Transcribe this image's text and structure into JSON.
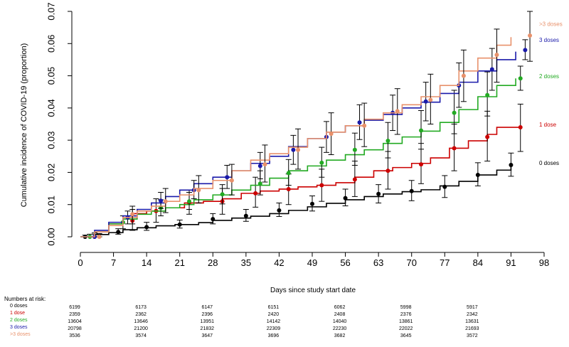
{
  "chart_data": {
    "type": "line",
    "xlabel": "Days since study start date",
    "ylabel": "Cumulative incidence of COVID-19 (proportion)",
    "xlim": [
      0,
      98
    ],
    "ylim": [
      0,
      0.07
    ],
    "x_ticks": [
      "0",
      "7",
      "14",
      "21",
      "28",
      "35",
      "42",
      "49",
      "56",
      "63",
      "70",
      "77",
      "84",
      "91",
      "98"
    ],
    "y_ticks": [
      "0.00",
      "0.01",
      "0.02",
      "0.03",
      "0.04",
      "0.05",
      "0.06",
      "0.07"
    ],
    "series": [
      {
        "name": "0 doses",
        "color": "#000000",
        "end_label": "0 doses",
        "curve": [
          [
            0,
            0
          ],
          [
            3,
            0.0007
          ],
          [
            6,
            0.0013
          ],
          [
            9,
            0.0022
          ],
          [
            12,
            0.0028
          ],
          [
            16,
            0.0034
          ],
          [
            20,
            0.0038
          ],
          [
            25,
            0.0044
          ],
          [
            28,
            0.0051
          ],
          [
            32,
            0.0058
          ],
          [
            36,
            0.0064
          ],
          [
            40,
            0.0072
          ],
          [
            44,
            0.0082
          ],
          [
            48,
            0.0093
          ],
          [
            52,
            0.0104
          ],
          [
            56,
            0.0115
          ],
          [
            60,
            0.0125
          ],
          [
            64,
            0.0133
          ],
          [
            68,
            0.014
          ],
          [
            72,
            0.0146
          ],
          [
            76,
            0.0158
          ],
          [
            80,
            0.0172
          ],
          [
            84,
            0.0192
          ],
          [
            88,
            0.0207
          ],
          [
            91,
            0.0225
          ]
        ],
        "points": [
          {
            "x": 1,
            "y": 0,
            "lo": 0,
            "hi": 0.0005
          },
          {
            "x": 8,
            "y": 0.0015,
            "lo": 0.0008,
            "hi": 0.0025
          },
          {
            "x": 14,
            "y": 0.003,
            "lo": 0.002,
            "hi": 0.0045
          },
          {
            "x": 21,
            "y": 0.0038,
            "lo": 0.0027,
            "hi": 0.0052
          },
          {
            "x": 28,
            "y": 0.0055,
            "lo": 0.004,
            "hi": 0.0072
          },
          {
            "x": 35,
            "y": 0.0065,
            "lo": 0.0048,
            "hi": 0.0085
          },
          {
            "x": 42,
            "y": 0.0082,
            "lo": 0.0063,
            "hi": 0.0105
          },
          {
            "x": 49,
            "y": 0.0102,
            "lo": 0.008,
            "hi": 0.0127
          },
          {
            "x": 56,
            "y": 0.012,
            "lo": 0.0096,
            "hi": 0.0148
          },
          {
            "x": 63,
            "y": 0.0133,
            "lo": 0.0105,
            "hi": 0.0162
          },
          {
            "x": 70,
            "y": 0.0142,
            "lo": 0.0112,
            "hi": 0.0175
          },
          {
            "x": 77,
            "y": 0.0155,
            "lo": 0.0122,
            "hi": 0.019
          },
          {
            "x": 84,
            "y": 0.0192,
            "lo": 0.0158,
            "hi": 0.023
          },
          {
            "x": 91,
            "y": 0.0223,
            "lo": 0.0188,
            "hi": 0.026
          }
        ]
      },
      {
        "name": "1 dose",
        "color": "#cc0000",
        "end_label": "1 dose",
        "curve": [
          [
            1,
            0
          ],
          [
            3,
            0.0015
          ],
          [
            6,
            0.004
          ],
          [
            9,
            0.006
          ],
          [
            11,
            0.0072
          ],
          [
            14,
            0.008
          ],
          [
            18,
            0.009
          ],
          [
            22,
            0.0105
          ],
          [
            26,
            0.011
          ],
          [
            30,
            0.0118
          ],
          [
            34,
            0.0135
          ],
          [
            38,
            0.0142
          ],
          [
            42,
            0.0148
          ],
          [
            46,
            0.0155
          ],
          [
            50,
            0.016
          ],
          [
            54,
            0.0168
          ],
          [
            58,
            0.0185
          ],
          [
            62,
            0.0205
          ],
          [
            66,
            0.0215
          ],
          [
            70,
            0.0228
          ],
          [
            74,
            0.0245
          ],
          [
            78,
            0.0275
          ],
          [
            82,
            0.0298
          ],
          [
            86,
            0.0318
          ],
          [
            88,
            0.034
          ],
          [
            93,
            0.0342
          ]
        ],
        "points": [
          {
            "x": 3,
            "y": 0,
            "lo": 0,
            "hi": 0.0012
          },
          {
            "x": 11,
            "y": 0.005,
            "lo": 0.002,
            "hi": 0.0085
          },
          {
            "x": 16,
            "y": 0.008,
            "lo": 0.0045,
            "hi": 0.0118
          },
          {
            "x": 23,
            "y": 0.0105,
            "lo": 0.007,
            "hi": 0.0145
          },
          {
            "x": 30,
            "y": 0.011,
            "lo": 0.007,
            "hi": 0.015
          },
          {
            "x": 37,
            "y": 0.0135,
            "lo": 0.0092,
            "hi": 0.0185
          },
          {
            "x": 44,
            "y": 0.0148,
            "lo": 0.01,
            "hi": 0.0195
          },
          {
            "x": 51,
            "y": 0.016,
            "lo": 0.011,
            "hi": 0.021
          },
          {
            "x": 58,
            "y": 0.0178,
            "lo": 0.0125,
            "hi": 0.0235
          },
          {
            "x": 65,
            "y": 0.0205,
            "lo": 0.0148,
            "hi": 0.0265
          },
          {
            "x": 72,
            "y": 0.0225,
            "lo": 0.0165,
            "hi": 0.029
          },
          {
            "x": 79,
            "y": 0.0275,
            "lo": 0.0205,
            "hi": 0.035
          },
          {
            "x": 86,
            "y": 0.031,
            "lo": 0.0235,
            "hi": 0.039
          },
          {
            "x": 93,
            "y": 0.034,
            "lo": 0.0265,
            "hi": 0.0412
          }
        ]
      },
      {
        "name": "2 doses",
        "color": "#22aa22",
        "end_label": "2 doses",
        "curve": [
          [
            0,
            0
          ],
          [
            3,
            0.0015
          ],
          [
            6,
            0.004
          ],
          [
            9,
            0.0055
          ],
          [
            12,
            0.007
          ],
          [
            15,
            0.008
          ],
          [
            18,
            0.009
          ],
          [
            21,
            0.01
          ],
          [
            24,
            0.0115
          ],
          [
            28,
            0.013
          ],
          [
            32,
            0.0145
          ],
          [
            36,
            0.016
          ],
          [
            40,
            0.0182
          ],
          [
            44,
            0.0205
          ],
          [
            48,
            0.022
          ],
          [
            52,
            0.0238
          ],
          [
            56,
            0.0255
          ],
          [
            60,
            0.027
          ],
          [
            64,
            0.029
          ],
          [
            68,
            0.031
          ],
          [
            72,
            0.0328
          ],
          [
            76,
            0.0355
          ],
          [
            80,
            0.0395
          ],
          [
            84,
            0.0435
          ],
          [
            88,
            0.047
          ],
          [
            92,
            0.0492
          ]
        ],
        "points": [
          {
            "x": 2,
            "y": 0,
            "lo": 0,
            "hi": 0.0008
          },
          {
            "x": 9,
            "y": 0.0045,
            "lo": 0.0025,
            "hi": 0.0065
          },
          {
            "x": 17,
            "y": 0.009,
            "lo": 0.0065,
            "hi": 0.0115
          },
          {
            "x": 23,
            "y": 0.011,
            "lo": 0.0085,
            "hi": 0.0138
          },
          {
            "x": 30,
            "y": 0.0132,
            "lo": 0.0102,
            "hi": 0.0162
          },
          {
            "x": 38,
            "y": 0.0165,
            "lo": 0.013,
            "hi": 0.0205
          },
          {
            "x": 44,
            "y": 0.0198,
            "lo": 0.016,
            "hi": 0.024
          },
          {
            "x": 51,
            "y": 0.023,
            "lo": 0.0185,
            "hi": 0.0278
          },
          {
            "x": 58,
            "y": 0.027,
            "lo": 0.0222,
            "hi": 0.0322
          },
          {
            "x": 65,
            "y": 0.0298,
            "lo": 0.0245,
            "hi": 0.0355
          },
          {
            "x": 72,
            "y": 0.033,
            "lo": 0.0272,
            "hi": 0.0392
          },
          {
            "x": 79,
            "y": 0.0385,
            "lo": 0.032,
            "hi": 0.0455
          },
          {
            "x": 86,
            "y": 0.044,
            "lo": 0.0375,
            "hi": 0.0512
          },
          {
            "x": 93,
            "y": 0.0492,
            "lo": 0.0455,
            "hi": 0.053
          }
        ]
      },
      {
        "name": "3 doses",
        "color": "#1a1aaa",
        "end_label": "3 doses",
        "curve": [
          [
            0,
            0
          ],
          [
            3,
            0.002
          ],
          [
            6,
            0.0045
          ],
          [
            9,
            0.0065
          ],
          [
            12,
            0.0085
          ],
          [
            15,
            0.0105
          ],
          [
            18,
            0.0125
          ],
          [
            21,
            0.0145
          ],
          [
            24,
            0.0165
          ],
          [
            28,
            0.0185
          ],
          [
            32,
            0.0205
          ],
          [
            36,
            0.0228
          ],
          [
            40,
            0.025
          ],
          [
            44,
            0.028
          ],
          [
            48,
            0.0305
          ],
          [
            52,
            0.0325
          ],
          [
            56,
            0.0345
          ],
          [
            60,
            0.0362
          ],
          [
            64,
            0.038
          ],
          [
            68,
            0.04
          ],
          [
            72,
            0.0418
          ],
          [
            76,
            0.0445
          ],
          [
            80,
            0.048
          ],
          [
            84,
            0.0515
          ],
          [
            88,
            0.055
          ],
          [
            92,
            0.0575
          ]
        ],
        "points": [
          {
            "x": 3,
            "y": 0,
            "lo": 0,
            "hi": 0.0008
          },
          {
            "x": 10,
            "y": 0.006,
            "lo": 0.004,
            "hi": 0.008
          },
          {
            "x": 17,
            "y": 0.0112,
            "lo": 0.0088,
            "hi": 0.0138
          },
          {
            "x": 24,
            "y": 0.0145,
            "lo": 0.0118,
            "hi": 0.0175
          },
          {
            "x": 31,
            "y": 0.0185,
            "lo": 0.015,
            "hi": 0.0222
          },
          {
            "x": 38,
            "y": 0.022,
            "lo": 0.018,
            "hi": 0.0262
          },
          {
            "x": 45,
            "y": 0.027,
            "lo": 0.0225,
            "hi": 0.0315
          },
          {
            "x": 52,
            "y": 0.031,
            "lo": 0.0262,
            "hi": 0.0358
          },
          {
            "x": 59,
            "y": 0.0355,
            "lo": 0.0302,
            "hi": 0.041
          },
          {
            "x": 66,
            "y": 0.0385,
            "lo": 0.033,
            "hi": 0.044
          },
          {
            "x": 73,
            "y": 0.042,
            "lo": 0.036,
            "hi": 0.048
          },
          {
            "x": 80,
            "y": 0.047,
            "lo": 0.0402,
            "hi": 0.054
          },
          {
            "x": 87,
            "y": 0.052,
            "lo": 0.0455,
            "hi": 0.0585
          },
          {
            "x": 94,
            "y": 0.058,
            "lo": 0.055,
            "hi": 0.0612
          }
        ]
      },
      {
        "name": ">3 doses",
        "color": "#e8916b",
        "end_label": ">3 doses",
        "curve": [
          [
            0,
            0
          ],
          [
            3,
            0.0015
          ],
          [
            6,
            0.0035
          ],
          [
            9,
            0.006
          ],
          [
            12,
            0.008
          ],
          [
            15,
            0.0095
          ],
          [
            18,
            0.011
          ],
          [
            21,
            0.013
          ],
          [
            24,
            0.015
          ],
          [
            28,
            0.0175
          ],
          [
            32,
            0.0205
          ],
          [
            36,
            0.0238
          ],
          [
            40,
            0.0258
          ],
          [
            44,
            0.0278
          ],
          [
            48,
            0.0305
          ],
          [
            52,
            0.0325
          ],
          [
            56,
            0.0345
          ],
          [
            60,
            0.0365
          ],
          [
            64,
            0.0385
          ],
          [
            68,
            0.041
          ],
          [
            72,
            0.0435
          ],
          [
            76,
            0.047
          ],
          [
            80,
            0.0515
          ],
          [
            84,
            0.0555
          ],
          [
            88,
            0.0595
          ],
          [
            91,
            0.062
          ]
        ],
        "points": [
          {
            "x": 4,
            "y": 0,
            "lo": 0,
            "hi": 0.001
          },
          {
            "x": 11,
            "y": 0.007,
            "lo": 0.004,
            "hi": 0.0095
          },
          {
            "x": 18,
            "y": 0.011,
            "lo": 0.0075,
            "hi": 0.015
          },
          {
            "x": 25,
            "y": 0.0145,
            "lo": 0.0105,
            "hi": 0.019
          },
          {
            "x": 32,
            "y": 0.0175,
            "lo": 0.013,
            "hi": 0.0225
          },
          {
            "x": 39,
            "y": 0.0225,
            "lo": 0.017,
            "hi": 0.0285
          },
          {
            "x": 46,
            "y": 0.027,
            "lo": 0.021,
            "hi": 0.0335
          },
          {
            "x": 53,
            "y": 0.032,
            "lo": 0.0255,
            "hi": 0.0385
          },
          {
            "x": 60,
            "y": 0.0345,
            "lo": 0.028,
            "hi": 0.0415
          },
          {
            "x": 67,
            "y": 0.039,
            "lo": 0.0318,
            "hi": 0.046
          },
          {
            "x": 74,
            "y": 0.0425,
            "lo": 0.035,
            "hi": 0.0505
          },
          {
            "x": 81,
            "y": 0.05,
            "lo": 0.042,
            "hi": 0.058
          },
          {
            "x": 88,
            "y": 0.0565,
            "lo": 0.048,
            "hi": 0.0645
          },
          {
            "x": 95,
            "y": 0.0625,
            "lo": 0.0545,
            "hi": 0.07
          }
        ]
      }
    ]
  },
  "risk_table": {
    "title": "Numbers at risk:",
    "rows": [
      {
        "label": "0 doses",
        "color": "#000000",
        "values": [
          "6199",
          "6173",
          "6147",
          "6151",
          "6062",
          "5998",
          "5917"
        ]
      },
      {
        "label": "1 dose",
        "color": "#cc0000",
        "values": [
          "2359",
          "2362",
          "2396",
          "2420",
          "2408",
          "2376",
          "2342"
        ]
      },
      {
        "label": "2 doses",
        "color": "#22aa22",
        "values": [
          "13604",
          "13646",
          "13951",
          "14142",
          "14040",
          "13861",
          "13631"
        ]
      },
      {
        "label": "3 doses",
        "color": "#1a1aaa",
        "values": [
          "20798",
          "21200",
          "21832",
          "22309",
          "22230",
          "22022",
          "21693"
        ]
      },
      {
        "label": ">3 doses",
        "color": "#e8916b",
        "values": [
          "3536",
          "3574",
          "3647",
          "3696",
          "3682",
          "3645",
          "3572"
        ]
      }
    ]
  }
}
